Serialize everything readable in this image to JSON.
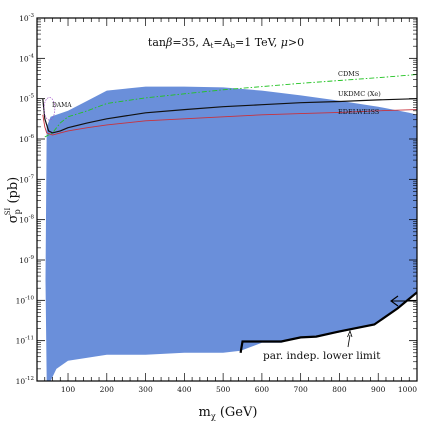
{
  "chart_data": {
    "type": "area",
    "title": "tanβ=35, A_t=A_b=1 TeV, μ>0",
    "title_parts": {
      "a": "tan",
      "beta": "β",
      "b": "=35, A",
      "sub_t": "t",
      "c": "=A",
      "sub_b": "b",
      "d": "=1 TeV, ",
      "mu": "μ",
      "e": ">0"
    },
    "xlabel": {
      "main": "m",
      "sub": "χ",
      "unit": " (GeV)"
    },
    "ylabel": {
      "sigma": "σ",
      "sub": "p",
      "sup": "SI",
      "unit": " (pb)"
    },
    "xlim": [
      20,
      1000
    ],
    "ylim_log10": [
      -12,
      -3
    ],
    "y_scale": "log",
    "grid": false,
    "x_ticks": [
      100,
      200,
      300,
      400,
      500,
      600,
      700,
      800,
      900,
      1000
    ],
    "y_ticks": [
      {
        "exp": -3,
        "label": "10",
        "sup": "-3"
      },
      {
        "exp": -4,
        "label": "10",
        "sup": "-4"
      },
      {
        "exp": -5,
        "label": "10",
        "sup": "-5"
      },
      {
        "exp": -6,
        "label": "10",
        "sup": "-6"
      },
      {
        "exp": -7,
        "label": "10",
        "sup": "-7"
      },
      {
        "exp": -8,
        "label": "10",
        "sup": "-8"
      },
      {
        "exp": -9,
        "label": "10",
        "sup": "-9"
      },
      {
        "exp": -10,
        "label": "10",
        "sup": "-10"
      },
      {
        "exp": -11,
        "label": "10",
        "sup": "-11"
      },
      {
        "exp": -12,
        "label": "10",
        "sup": "-12"
      }
    ],
    "colors": {
      "region": "#6a8fda",
      "cdms": "#22c322",
      "ukdmc": "#111111",
      "edelweiss": "#c8323c",
      "dama": "#a050c8",
      "lower_limit": "#000000"
    },
    "region": {
      "upper": [
        [
          45,
          -5.7
        ],
        [
          55,
          -5.45
        ],
        [
          70,
          -5.4
        ],
        [
          100,
          -5.3
        ],
        [
          150,
          -5.05
        ],
        [
          200,
          -4.8
        ],
        [
          250,
          -4.75
        ],
        [
          300,
          -4.7
        ],
        [
          400,
          -4.7
        ],
        [
          500,
          -4.72
        ],
        [
          600,
          -4.8
        ],
        [
          700,
          -4.92
        ],
        [
          800,
          -5.05
        ],
        [
          900,
          -5.2
        ],
        [
          980,
          -5.35
        ],
        [
          1000,
          -5.4
        ]
      ],
      "lower": [
        [
          1000,
          -9.8
        ],
        [
          950,
          -10.2
        ],
        [
          890,
          -10.6
        ],
        [
          800,
          -10.8
        ],
        [
          740,
          -10.88
        ],
        [
          700,
          -10.9
        ],
        [
          650,
          -11.05
        ],
        [
          600,
          -11.05
        ],
        [
          545,
          -11.25
        ],
        [
          500,
          -11.3
        ],
        [
          400,
          -11.3
        ],
        [
          300,
          -11.35
        ],
        [
          200,
          -11.35
        ],
        [
          100,
          -11.5
        ],
        [
          70,
          -11.7
        ],
        [
          55,
          -12
        ],
        [
          45,
          -12
        ],
        [
          42,
          -9.5
        ]
      ]
    },
    "series": [
      {
        "name": "CDMS",
        "style": "dash",
        "points": [
          [
            40,
            -5.95
          ],
          [
            60,
            -5.85
          ],
          [
            80,
            -5.6
          ],
          [
            100,
            -5.45
          ],
          [
            150,
            -5.3
          ],
          [
            200,
            -5.12
          ],
          [
            300,
            -4.98
          ],
          [
            400,
            -4.88
          ],
          [
            500,
            -4.78
          ],
          [
            600,
            -4.7
          ],
          [
            700,
            -4.62
          ],
          [
            800,
            -4.55
          ],
          [
            900,
            -4.48
          ],
          [
            1000,
            -4.4
          ]
        ]
      },
      {
        "name": "UKDMC (Xe)",
        "style": "solid",
        "points": [
          [
            35,
            -5.0
          ],
          [
            40,
            -5.5
          ],
          [
            50,
            -5.8
          ],
          [
            60,
            -5.85
          ],
          [
            80,
            -5.8
          ],
          [
            100,
            -5.72
          ],
          [
            150,
            -5.6
          ],
          [
            200,
            -5.5
          ],
          [
            300,
            -5.35
          ],
          [
            400,
            -5.27
          ],
          [
            500,
            -5.2
          ],
          [
            600,
            -5.15
          ],
          [
            700,
            -5.1
          ],
          [
            800,
            -5.07
          ],
          [
            900,
            -5.03
          ],
          [
            1000,
            -5.0
          ]
        ]
      },
      {
        "name": "EDELWEISS",
        "style": "solid",
        "points": [
          [
            35,
            -5.4
          ],
          [
            40,
            -5.7
          ],
          [
            45,
            -5.85
          ],
          [
            60,
            -5.9
          ],
          [
            80,
            -5.85
          ],
          [
            100,
            -5.8
          ],
          [
            150,
            -5.72
          ],
          [
            200,
            -5.65
          ],
          [
            300,
            -5.55
          ],
          [
            400,
            -5.5
          ],
          [
            500,
            -5.45
          ],
          [
            600,
            -5.4
          ],
          [
            700,
            -5.37
          ],
          [
            800,
            -5.34
          ],
          [
            900,
            -5.3
          ],
          [
            1000,
            -5.27
          ]
        ]
      }
    ],
    "dama": {
      "name": "DAMA",
      "center": [
        52,
        -5.25
      ],
      "rx": 14,
      "ry": 0.28
    },
    "lower_limit": {
      "name": "par. indep. lower limit",
      "points": [
        [
          545,
          -11.3
        ],
        [
          550,
          -11.02
        ],
        [
          600,
          -11.02
        ],
        [
          650,
          -11.02
        ],
        [
          700,
          -10.92
        ],
        [
          740,
          -10.9
        ],
        [
          800,
          -10.77
        ],
        [
          890,
          -10.6
        ],
        [
          950,
          -10.2
        ],
        [
          1000,
          -9.8
        ]
      ]
    }
  }
}
